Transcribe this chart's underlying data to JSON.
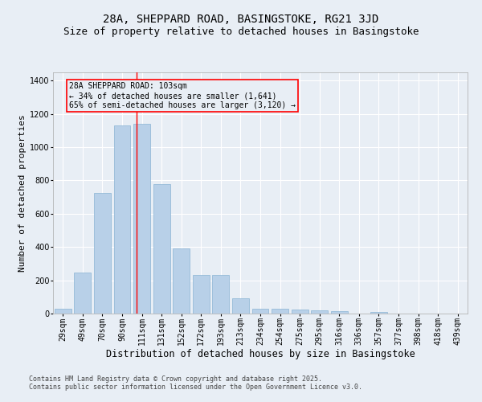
{
  "title": "28A, SHEPPARD ROAD, BASINGSTOKE, RG21 3JD",
  "subtitle": "Size of property relative to detached houses in Basingstoke",
  "xlabel": "Distribution of detached houses by size in Basingstoke",
  "ylabel": "Number of detached properties",
  "categories": [
    "29sqm",
    "49sqm",
    "70sqm",
    "90sqm",
    "111sqm",
    "131sqm",
    "152sqm",
    "172sqm",
    "193sqm",
    "213sqm",
    "234sqm",
    "254sqm",
    "275sqm",
    "295sqm",
    "316sqm",
    "336sqm",
    "357sqm",
    "377sqm",
    "398sqm",
    "418sqm",
    "439sqm"
  ],
  "values": [
    30,
    245,
    725,
    1130,
    1140,
    780,
    390,
    230,
    230,
    90,
    30,
    30,
    25,
    20,
    15,
    0,
    10,
    0,
    0,
    0,
    0
  ],
  "bar_color": "#b8d0e8",
  "bar_edge_color": "#8ab4d4",
  "bg_color": "#e8eef5",
  "grid_color": "#ffffff",
  "red_line_x": 3.75,
  "annotation_box_text": "28A SHEPPARD ROAD: 103sqm\n← 34% of detached houses are smaller (1,641)\n65% of semi-detached houses are larger (3,120) →",
  "footer_line1": "Contains HM Land Registry data © Crown copyright and database right 2025.",
  "footer_line2": "Contains public sector information licensed under the Open Government Licence v3.0.",
  "ylim": [
    0,
    1450
  ],
  "title_fontsize": 10,
  "subtitle_fontsize": 9,
  "xlabel_fontsize": 8.5,
  "ylabel_fontsize": 8,
  "tick_fontsize": 7,
  "annotation_fontsize": 7,
  "footer_fontsize": 6
}
